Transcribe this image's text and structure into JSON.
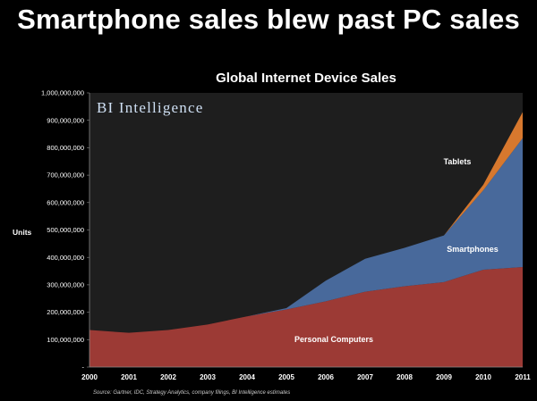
{
  "headline": "Smartphone sales blew past PC sales",
  "brand": "BI Intelligence",
  "colors": {
    "page_bg": "#000000",
    "plot_bg": "#1e1e1e",
    "personal_computers": "#9c3a35",
    "smartphones": "#48699b",
    "tablets": "#d7782e"
  },
  "chart_data": {
    "type": "area",
    "stacked": true,
    "title": "Global Internet Device Sales",
    "ylabel": "Units",
    "xlabel": "",
    "ylim": [
      0,
      1000000000
    ],
    "y_ticks": [
      "-",
      "100,000,000",
      "200,000,000",
      "300,000,000",
      "400,000,000",
      "500,000,000",
      "600,000,000",
      "700,000,000",
      "800,000,000",
      "900,000,000",
      "1,000,000,000"
    ],
    "y_tick_values": [
      0,
      100000000,
      200000000,
      300000000,
      400000000,
      500000000,
      600000000,
      700000000,
      800000000,
      900000000,
      1000000000
    ],
    "categories": [
      "2000",
      "2001",
      "2002",
      "2003",
      "2004",
      "2005",
      "2006",
      "2007",
      "2008",
      "2009",
      "2010",
      "2011"
    ],
    "series": [
      {
        "name": "Personal Computers",
        "color": "#9c3a35",
        "values": [
          135000000,
          125000000,
          135000000,
          155000000,
          185000000,
          210000000,
          240000000,
          275000000,
          295000000,
          310000000,
          355000000,
          365000000
        ]
      },
      {
        "name": "Smartphones",
        "color": "#48699b",
        "values": [
          0,
          0,
          0,
          0,
          0,
          5000000,
          75000000,
          120000000,
          140000000,
          170000000,
          290000000,
          470000000
        ]
      },
      {
        "name": "Tablets",
        "color": "#d7782e",
        "values": [
          0,
          0,
          0,
          0,
          0,
          0,
          0,
          0,
          0,
          0,
          20000000,
          95000000
        ]
      }
    ],
    "source": "Source: Gartner, IDC, Strategy Analytics, company filings, BI Intelligence estimates"
  }
}
